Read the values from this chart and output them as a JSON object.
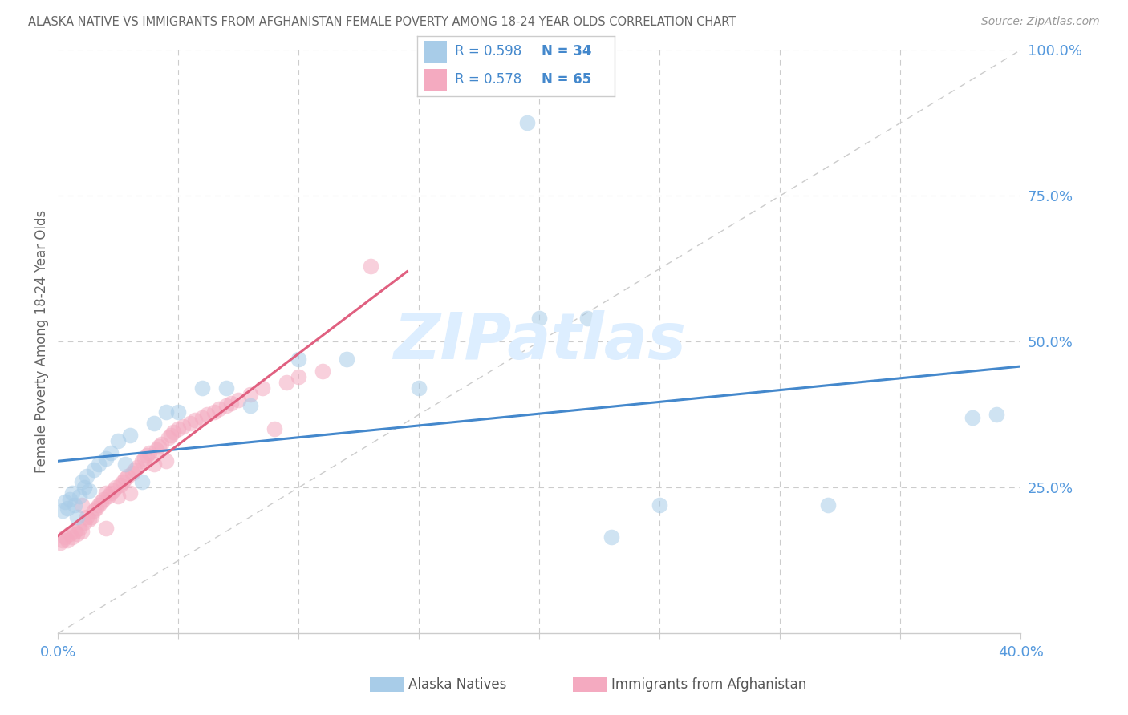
{
  "title": "ALASKA NATIVE VS IMMIGRANTS FROM AFGHANISTAN FEMALE POVERTY AMONG 18-24 YEAR OLDS CORRELATION CHART",
  "source": "Source: ZipAtlas.com",
  "ylabel": "Female Poverty Among 18-24 Year Olds",
  "xlim": [
    0.0,
    0.4
  ],
  "ylim": [
    0.0,
    1.0
  ],
  "xtick_vals": [
    0.0,
    0.05,
    0.1,
    0.15,
    0.2,
    0.25,
    0.3,
    0.35,
    0.4
  ],
  "ytick_vals": [
    0.0,
    0.25,
    0.5,
    0.75,
    1.0
  ],
  "ytick_labels": [
    "",
    "25.0%",
    "50.0%",
    "75.0%",
    "100.0%"
  ],
  "R1": 0.598,
  "N1": 34,
  "R2": 0.578,
  "N2": 65,
  "blue_scatter": "#a8cce8",
  "blue_line": "#4488cc",
  "pink_scatter": "#f4aac0",
  "pink_line": "#e06080",
  "diag_color": "#cccccc",
  "grid_color": "#cccccc",
  "tick_label_color": "#5599dd",
  "title_color": "#666666",
  "source_color": "#999999",
  "watermark": "ZIPatlas",
  "watermark_color": "#ddeeff",
  "ylabel_color": "#666666",
  "legend_text_color": "#4488cc",
  "legend_border": "#cccccc",
  "bottom_label1": "Alaska Natives",
  "bottom_label2": "Immigrants from Afghanistan",
  "bottom_label1_color": "#5599dd",
  "bottom_label2_color": "#888888",
  "ak_x": [
    0.002,
    0.003,
    0.004,
    0.005,
    0.006,
    0.007,
    0.008,
    0.009,
    0.01,
    0.011,
    0.012,
    0.013,
    0.015,
    0.017,
    0.02,
    0.022,
    0.025,
    0.028,
    0.03,
    0.035,
    0.04,
    0.045,
    0.05,
    0.06,
    0.07,
    0.08,
    0.1,
    0.12,
    0.15,
    0.2,
    0.22,
    0.25,
    0.32,
    0.38
  ],
  "ak_y": [
    0.21,
    0.225,
    0.215,
    0.23,
    0.24,
    0.22,
    0.2,
    0.235,
    0.26,
    0.25,
    0.27,
    0.245,
    0.28,
    0.29,
    0.3,
    0.31,
    0.33,
    0.29,
    0.34,
    0.26,
    0.36,
    0.38,
    0.38,
    0.42,
    0.42,
    0.39,
    0.47,
    0.47,
    0.42,
    0.54,
    0.54,
    0.22,
    0.22,
    0.37
  ],
  "af_x": [
    0.001,
    0.002,
    0.003,
    0.004,
    0.005,
    0.006,
    0.007,
    0.008,
    0.009,
    0.01,
    0.01,
    0.011,
    0.012,
    0.013,
    0.014,
    0.015,
    0.016,
    0.017,
    0.018,
    0.019,
    0.02,
    0.02,
    0.021,
    0.022,
    0.023,
    0.024,
    0.025,
    0.026,
    0.027,
    0.028,
    0.029,
    0.03,
    0.031,
    0.032,
    0.033,
    0.035,
    0.036,
    0.037,
    0.038,
    0.04,
    0.041,
    0.042,
    0.043,
    0.045,
    0.046,
    0.047,
    0.048,
    0.05,
    0.052,
    0.055,
    0.057,
    0.06,
    0.062,
    0.065,
    0.067,
    0.07,
    0.072,
    0.075,
    0.08,
    0.085,
    0.09,
    0.095,
    0.1,
    0.11,
    0.13
  ],
  "af_y": [
    0.155,
    0.16,
    0.165,
    0.16,
    0.17,
    0.165,
    0.175,
    0.17,
    0.18,
    0.175,
    0.22,
    0.19,
    0.2,
    0.195,
    0.2,
    0.21,
    0.215,
    0.22,
    0.225,
    0.23,
    0.18,
    0.24,
    0.235,
    0.24,
    0.245,
    0.25,
    0.235,
    0.255,
    0.26,
    0.265,
    0.27,
    0.24,
    0.275,
    0.28,
    0.285,
    0.295,
    0.3,
    0.305,
    0.31,
    0.29,
    0.315,
    0.32,
    0.325,
    0.295,
    0.335,
    0.34,
    0.345,
    0.35,
    0.355,
    0.36,
    0.365,
    0.37,
    0.375,
    0.38,
    0.385,
    0.39,
    0.395,
    0.4,
    0.41,
    0.42,
    0.35,
    0.43,
    0.44,
    0.45,
    0.63
  ]
}
